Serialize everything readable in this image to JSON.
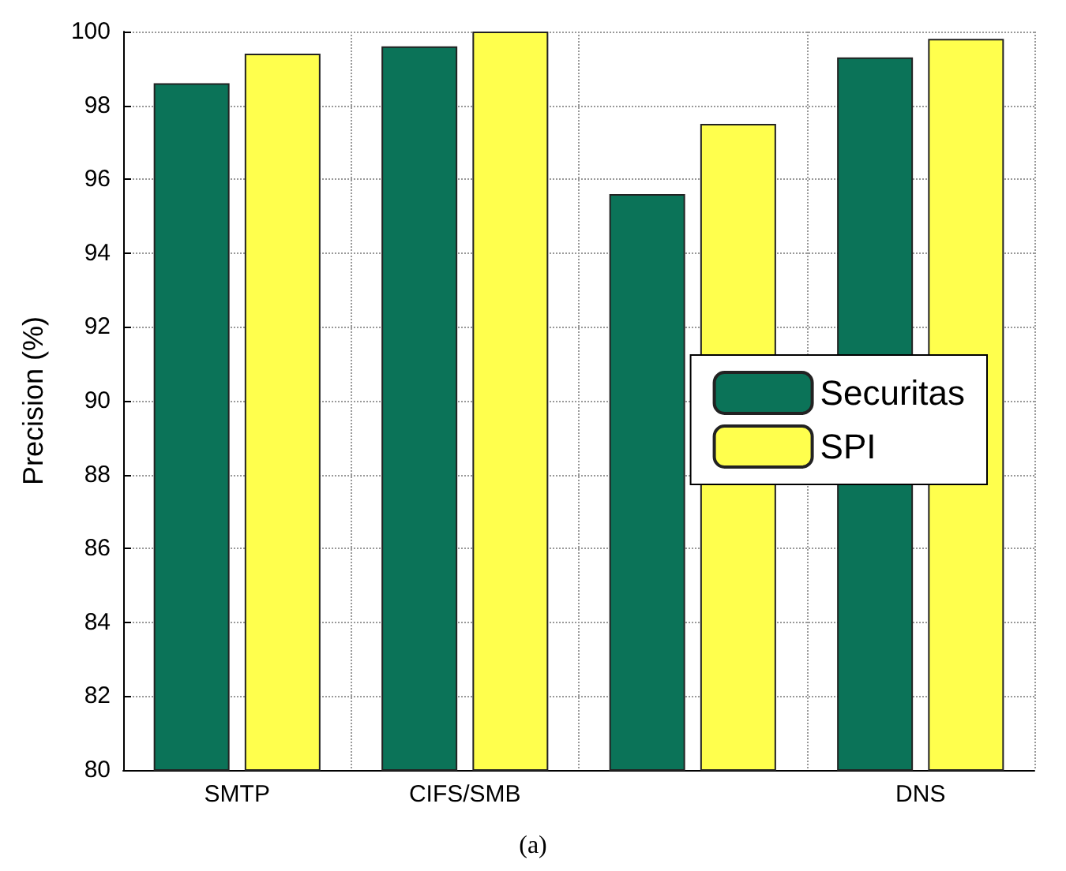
{
  "chart_data": {
    "type": "bar",
    "ylabel": "Precision (%)",
    "categories": [
      "SMTP",
      "CIFS/SMB",
      null,
      "DNS"
    ],
    "series": [
      {
        "name": "Securitas",
        "color": "#0b7358",
        "values": [
          98.6,
          99.6,
          95.6,
          99.3
        ]
      },
      {
        "name": "SPI",
        "color": "#ffff4d",
        "values": [
          99.4,
          100,
          97.5,
          99.8
        ]
      }
    ],
    "ylim": [
      80,
      100
    ],
    "yticks": [
      80,
      82,
      84,
      86,
      88,
      90,
      92,
      94,
      96,
      98,
      100
    ],
    "grid": true,
    "legend": "right",
    "annotations": [
      "(a)"
    ]
  }
}
